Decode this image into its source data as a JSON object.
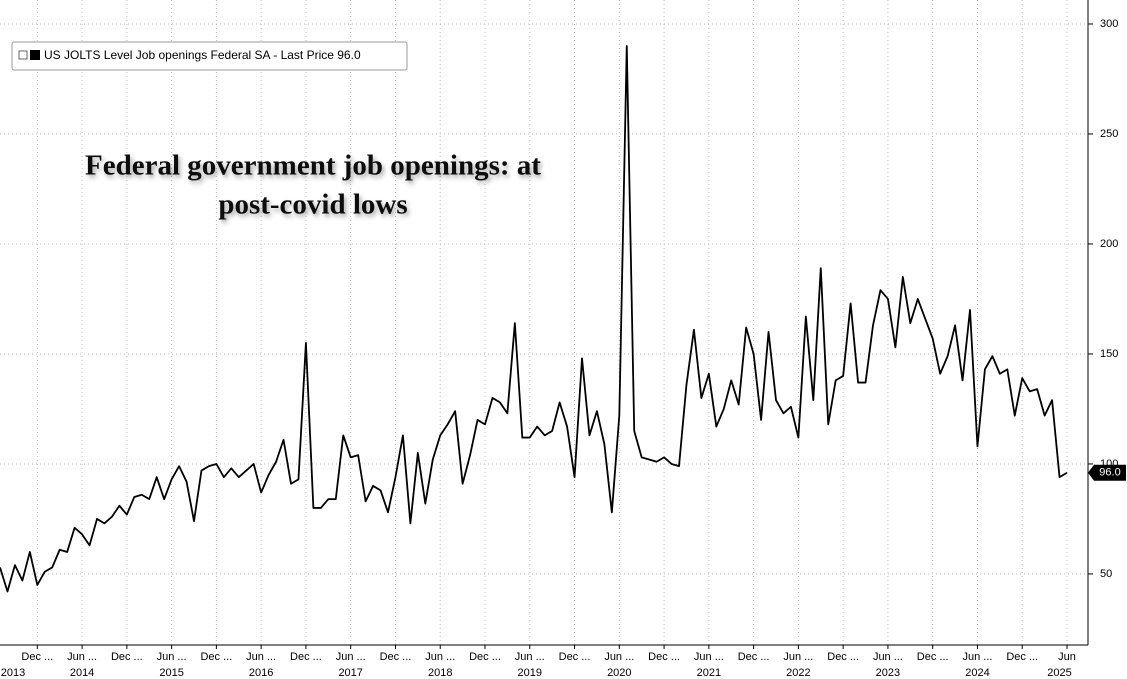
{
  "chart_data": {
    "type": "line",
    "annotation": [
      "Federal government job openings: at",
      "post-covid lows"
    ],
    "x": [
      "2013-07",
      "2013-08",
      "2013-09",
      "2013-10",
      "2013-11",
      "2013-12",
      "2014-01",
      "2014-02",
      "2014-03",
      "2014-04",
      "2014-05",
      "2014-06",
      "2014-07",
      "2014-08",
      "2014-09",
      "2014-10",
      "2014-11",
      "2014-12",
      "2015-01",
      "2015-02",
      "2015-03",
      "2015-04",
      "2015-05",
      "2015-06",
      "2015-07",
      "2015-08",
      "2015-09",
      "2015-10",
      "2015-11",
      "2015-12",
      "2016-01",
      "2016-02",
      "2016-03",
      "2016-04",
      "2016-05",
      "2016-06",
      "2016-07",
      "2016-08",
      "2016-09",
      "2016-10",
      "2016-11",
      "2016-12",
      "2017-01",
      "2017-02",
      "2017-03",
      "2017-04",
      "2017-05",
      "2017-06",
      "2017-07",
      "2017-08",
      "2017-09",
      "2017-10",
      "2017-11",
      "2017-12",
      "2018-01",
      "2018-02",
      "2018-03",
      "2018-04",
      "2018-05",
      "2018-06",
      "2018-07",
      "2018-08",
      "2018-09",
      "2018-10",
      "2018-11",
      "2018-12",
      "2019-01",
      "2019-02",
      "2019-03",
      "2019-04",
      "2019-05",
      "2019-06",
      "2019-07",
      "2019-08",
      "2019-09",
      "2019-10",
      "2019-11",
      "2019-12",
      "2020-01",
      "2020-02",
      "2020-03",
      "2020-04",
      "2020-05",
      "2020-06",
      "2020-07",
      "2020-08",
      "2020-09",
      "2020-10",
      "2020-11",
      "2020-12",
      "2021-01",
      "2021-02",
      "2021-03",
      "2021-04",
      "2021-05",
      "2021-06",
      "2021-07",
      "2021-08",
      "2021-09",
      "2021-10",
      "2021-11",
      "2021-12",
      "2022-01",
      "2022-02",
      "2022-03",
      "2022-04",
      "2022-05",
      "2022-06",
      "2022-07",
      "2022-08",
      "2022-09",
      "2022-10",
      "2022-11",
      "2022-12",
      "2023-01",
      "2023-02",
      "2023-03",
      "2023-04",
      "2023-05",
      "2023-06",
      "2023-07",
      "2023-08",
      "2023-09",
      "2023-10",
      "2023-11",
      "2023-12",
      "2024-01",
      "2024-02",
      "2024-03",
      "2024-04",
      "2024-05",
      "2024-06",
      "2024-07",
      "2024-08",
      "2024-09",
      "2024-10",
      "2024-11",
      "2024-12",
      "2025-01",
      "2025-02",
      "2025-03",
      "2025-04",
      "2025-05",
      "2025-06"
    ],
    "series": [
      {
        "name": "US JOLTS Level Job openings Federal SA - Last Price 96.0",
        "color": "#000000",
        "values": [
          53,
          42,
          54,
          47,
          60,
          45,
          51,
          53,
          61,
          60,
          71,
          68,
          63,
          75,
          73,
          76,
          81,
          77,
          85,
          86,
          84,
          94,
          84,
          93,
          99,
          92,
          74,
          97,
          99,
          100,
          94,
          98,
          94,
          97,
          100,
          87,
          95,
          101,
          111,
          91,
          93,
          155,
          80,
          80,
          84,
          84,
          113,
          103,
          104,
          83,
          90,
          88,
          78,
          94,
          113,
          73,
          105,
          82,
          102,
          113,
          118,
          124,
          91,
          104,
          120,
          118,
          130,
          128,
          123,
          164,
          112,
          112,
          117,
          113,
          115,
          128,
          117,
          94,
          148,
          113,
          124,
          109,
          78,
          122,
          290,
          115,
          103,
          102,
          101,
          103,
          100,
          99,
          136,
          161,
          130,
          141,
          117,
          125,
          138,
          127,
          162,
          150,
          120,
          160,
          129,
          123,
          126,
          112,
          167,
          129,
          189,
          118,
          138,
          140,
          173,
          137,
          137,
          163,
          179,
          175,
          153,
          185,
          164,
          175,
          166,
          157,
          141,
          149,
          163,
          138,
          170,
          108,
          143,
          149,
          141,
          143,
          122,
          139,
          133,
          134,
          122,
          129,
          94,
          96
        ]
      }
    ],
    "last_price": {
      "value": 96,
      "label": "96.0"
    },
    "ylim": [
      17.7,
      310.9
    ],
    "yticks": [
      50,
      100,
      150,
      200,
      250,
      300
    ],
    "xticks": [
      {
        "value": "2013-12",
        "label": "Dec ..."
      },
      {
        "value": "2014-06",
        "label": "Jun ..."
      },
      {
        "value": "2014-12",
        "label": "Dec ..."
      },
      {
        "value": "2015-06",
        "label": "Jun ..."
      },
      {
        "value": "2015-12",
        "label": "Dec ..."
      },
      {
        "value": "2016-06",
        "label": "Jun ..."
      },
      {
        "value": "2016-12",
        "label": "Dec ..."
      },
      {
        "value": "2017-06",
        "label": "Jun ..."
      },
      {
        "value": "2017-12",
        "label": "Dec ..."
      },
      {
        "value": "2018-06",
        "label": "Jun ..."
      },
      {
        "value": "2018-12",
        "label": "Dec ..."
      },
      {
        "value": "2019-06",
        "label": "Jun ..."
      },
      {
        "value": "2019-12",
        "label": "Dec ..."
      },
      {
        "value": "2020-06",
        "label": "Jun ..."
      },
      {
        "value": "2020-12",
        "label": "Dec ..."
      },
      {
        "value": "2021-06",
        "label": "Jun ..."
      },
      {
        "value": "2021-12",
        "label": "Dec ..."
      },
      {
        "value": "2022-06",
        "label": "Jun ..."
      },
      {
        "value": "2022-12",
        "label": "Dec ..."
      },
      {
        "value": "2023-06",
        "label": "Jun ..."
      },
      {
        "value": "2023-12",
        "label": "Dec ..."
      },
      {
        "value": "2024-06",
        "label": "Jun ..."
      },
      {
        "value": "2024-12",
        "label": "Dec ..."
      },
      {
        "value": "2025-06",
        "label": "Jun"
      }
    ],
    "xyears": [
      {
        "value": "2013-07",
        "label": "2013"
      },
      {
        "value": "2014-06",
        "label": "2014"
      },
      {
        "value": "2015-06",
        "label": "2015"
      },
      {
        "value": "2016-06",
        "label": "2016"
      },
      {
        "value": "2017-06",
        "label": "2017"
      },
      {
        "value": "2018-06",
        "label": "2018"
      },
      {
        "value": "2019-06",
        "label": "2019"
      },
      {
        "value": "2020-06",
        "label": "2020"
      },
      {
        "value": "2021-06",
        "label": "2021"
      },
      {
        "value": "2022-06",
        "label": "2022"
      },
      {
        "value": "2023-06",
        "label": "2023"
      },
      {
        "value": "2024-06",
        "label": "2024"
      },
      {
        "value": "2025-05",
        "label": "2025"
      }
    ],
    "grid": true,
    "legend": "top-left"
  }
}
